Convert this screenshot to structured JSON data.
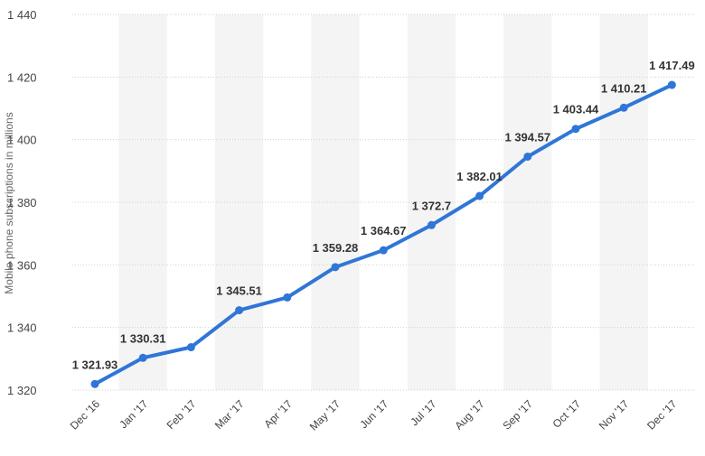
{
  "chart_data": {
    "type": "line",
    "title": "",
    "xlabel": "",
    "ylabel": "Mobile phone subscriptions in millions",
    "categories": [
      "Dec '16",
      "Jan '17",
      "Feb '17",
      "Mar '17",
      "Apr '17",
      "May '17",
      "Jun '17",
      "Jul '17",
      "Aug '17",
      "Sep '17",
      "Oct '17",
      "Nov '17",
      "Dec '17"
    ],
    "series": [
      {
        "values": [
          1321.93,
          1330.31,
          1333.7,
          1345.51,
          1349.6,
          1359.28,
          1364.67,
          1372.7,
          1382.01,
          1394.57,
          1403.44,
          1410.21,
          1417.49
        ],
        "labels": [
          "1 321.93",
          "1 330.31",
          "",
          "1 345.51",
          "",
          "1 359.28",
          "1 364.67",
          "1 372.7",
          "1 382.01",
          "1 394.57",
          "1 403.44",
          "1 410.21",
          "1 417.49"
        ]
      }
    ],
    "ylim": [
      1320,
      1440
    ],
    "yticks": [
      1320,
      1340,
      1360,
      1380,
      1400,
      1420,
      1440
    ],
    "ytick_labels": [
      "1 320",
      "1 340",
      "1 360",
      "1 380",
      "1 400",
      "1 420",
      "1 440"
    ],
    "grid": true,
    "legend": "none",
    "colors": {
      "line": "#2f76d7",
      "band": "#f4f4f4",
      "grid": "#d0d0d0"
    }
  }
}
